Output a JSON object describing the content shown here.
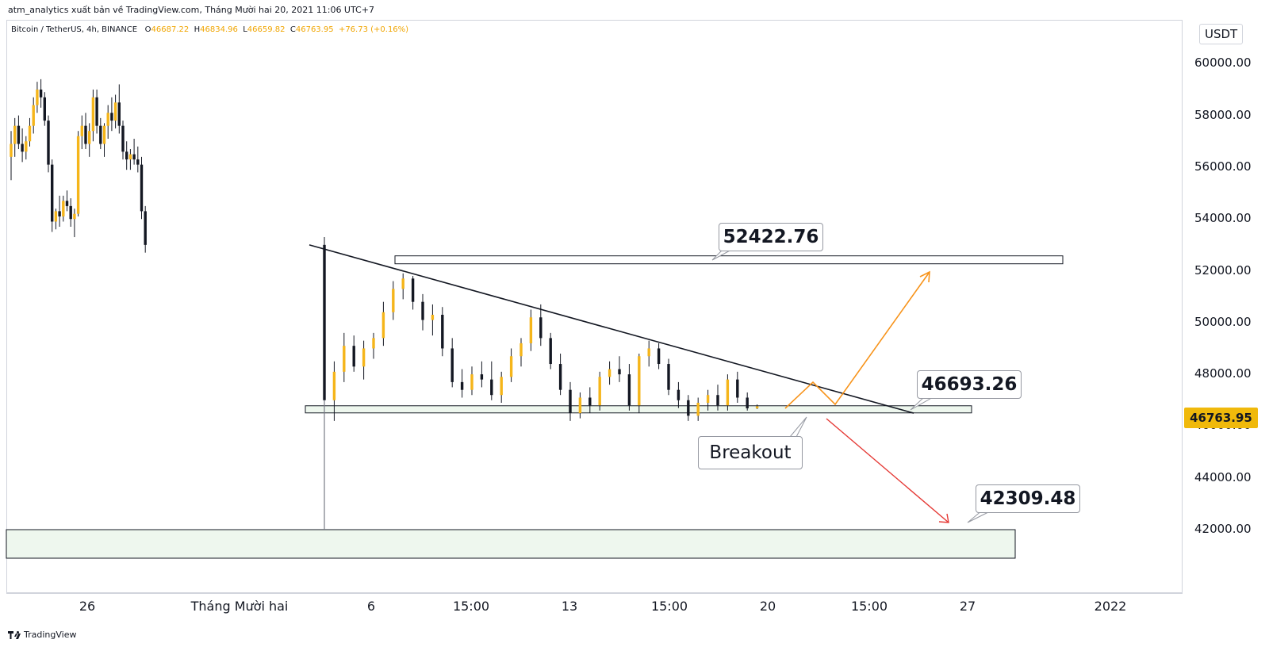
{
  "header": {
    "publish_line": "atm_analytics xuất bản về TradingView.com, Tháng Mười hai 20, 2021 11:06 UTC+7"
  },
  "legend": {
    "symbol": "Bitcoin / TetherUS, 4h, BINANCE",
    "open_key": "O",
    "open": "46687.22",
    "high_key": "H",
    "high": "46834.96",
    "low_key": "L",
    "low": "46659.82",
    "close_key": "C",
    "close": "46763.95",
    "change": "+76.73 (+0.16%)"
  },
  "price_axis": {
    "currency": "USDT",
    "ticks": [
      "60000.00",
      "58000.00",
      "56000.00",
      "54000.00",
      "52000.00",
      "50000.00",
      "48000.00",
      "46000.00",
      "44000.00",
      "42000.00"
    ],
    "last_price": "46763.95",
    "last_price_color": "#f0b90b"
  },
  "time_axis": {
    "ticks": [
      "26",
      "Tháng Mười hai",
      "6",
      "15:00",
      "13",
      "15:00",
      "20",
      "15:00",
      "27",
      "2022"
    ]
  },
  "annotations": {
    "resistance_label": "52422.76",
    "support_label": "46693.26",
    "target_label": "42309.48",
    "breakout_label": "Breakout"
  },
  "colors": {
    "up_candle": "#f5b51a",
    "down_candle": "#131722",
    "bullish_arrow": "#f7931a",
    "bearish_arrow": "#e53935",
    "zone_fill": "#eef7ee"
  },
  "footer": {
    "brand": "TradingView",
    "logo_icon": "tradingview-logo-icon"
  },
  "chart_data": {
    "type": "candlestick",
    "symbol": "Bitcoin / TetherUS",
    "interval": "4h",
    "exchange": "BINANCE",
    "ylim": [
      40500,
      61000
    ],
    "y_ticks": [
      42000,
      44000,
      46000,
      48000,
      50000,
      52000,
      54000,
      56000,
      58000,
      60000
    ],
    "levels": [
      {
        "value": 52422.76,
        "kind": "resistance-zone"
      },
      {
        "value": 46693.26,
        "kind": "support-zone"
      },
      {
        "value": 42309.48,
        "kind": "target-zone"
      }
    ],
    "trendline": {
      "from": 53000,
      "to": 46500
    },
    "candles": [
      [
        56400,
        57400,
        55500,
        56900
      ],
      [
        56900,
        57900,
        56400,
        57600
      ],
      [
        57600,
        58000,
        56700,
        56900
      ],
      [
        56900,
        57500,
        56200,
        56600
      ],
      [
        56600,
        57200,
        56300,
        57000
      ],
      [
        57000,
        57900,
        56800,
        57600
      ],
      [
        57600,
        58700,
        57300,
        58400
      ],
      [
        58400,
        59300,
        58100,
        59000
      ],
      [
        59000,
        59400,
        58300,
        58700
      ],
      [
        58700,
        58900,
        57600,
        57800
      ],
      [
        57800,
        58000,
        55800,
        56100
      ],
      [
        56100,
        56300,
        53500,
        53900
      ],
      [
        53900,
        54400,
        53600,
        54300
      ],
      [
        54300,
        54900,
        53700,
        54100
      ],
      [
        54100,
        54900,
        53900,
        54700
      ],
      [
        54700,
        55100,
        54300,
        54500
      ],
      [
        54500,
        54800,
        53700,
        54000
      ],
      [
        54000,
        54400,
        53300,
        54200
      ],
      [
        54200,
        57400,
        54100,
        57200
      ],
      [
        57200,
        58000,
        56700,
        57600
      ],
      [
        57600,
        58100,
        56700,
        56900
      ],
      [
        56900,
        57700,
        56400,
        57400
      ],
      [
        57400,
        59000,
        57000,
        58700
      ],
      [
        58700,
        59000,
        57300,
        57600
      ],
      [
        57600,
        57900,
        56700,
        56900
      ],
      [
        56900,
        57700,
        56400,
        57600
      ],
      [
        57600,
        58400,
        57100,
        58100
      ],
      [
        58100,
        58700,
        57400,
        57800
      ],
      [
        57800,
        58800,
        57500,
        58500
      ],
      [
        58500,
        59200,
        57300,
        57600
      ],
      [
        57600,
        57800,
        56300,
        56600
      ],
      [
        56600,
        57000,
        55900,
        56300
      ],
      [
        56300,
        56700,
        55900,
        56500
      ],
      [
        56500,
        57100,
        56100,
        56300
      ],
      [
        56300,
        56800,
        55800,
        56100
      ],
      [
        56100,
        56400,
        54000,
        54300
      ],
      [
        54300,
        54500,
        52700,
        53000
      ],
      [
        53000,
        53300,
        46500,
        47000
      ],
      [
        47000,
        48500,
        46200,
        48100
      ],
      [
        48100,
        49600,
        47700,
        49100
      ],
      [
        49100,
        49500,
        48100,
        48300
      ],
      [
        48300,
        49300,
        47800,
        49000
      ],
      [
        49000,
        49600,
        48600,
        49400
      ],
      [
        49400,
        50800,
        49100,
        50400
      ],
      [
        50400,
        51600,
        50100,
        51300
      ],
      [
        51300,
        51900,
        50900,
        51700
      ],
      [
        51700,
        51800,
        50500,
        50800
      ],
      [
        50800,
        51100,
        49700,
        50100
      ],
      [
        50100,
        50700,
        49500,
        50300
      ],
      [
        50300,
        50600,
        48700,
        49000
      ],
      [
        49000,
        49400,
        47500,
        47700
      ],
      [
        47700,
        48200,
        47100,
        47400
      ],
      [
        47400,
        48300,
        47200,
        48000
      ],
      [
        48000,
        48500,
        47500,
        47800
      ],
      [
        47800,
        48500,
        47000,
        47200
      ],
      [
        47200,
        48100,
        46900,
        47900
      ],
      [
        47900,
        49000,
        47700,
        48700
      ],
      [
        48700,
        49400,
        48300,
        49200
      ],
      [
        49200,
        50500,
        48900,
        50200
      ],
      [
        50200,
        50700,
        49100,
        49400
      ],
      [
        49400,
        49600,
        48200,
        48400
      ],
      [
        48400,
        48800,
        47200,
        47400
      ],
      [
        47400,
        47700,
        46200,
        46500
      ],
      [
        46500,
        47300,
        46300,
        47100
      ],
      [
        47100,
        47500,
        46500,
        46800
      ],
      [
        46800,
        48100,
        46600,
        47900
      ],
      [
        47900,
        48500,
        47600,
        48200
      ],
      [
        48200,
        48700,
        47700,
        48000
      ],
      [
        48000,
        48400,
        46600,
        46800
      ],
      [
        46800,
        48800,
        46500,
        48700
      ],
      [
        48700,
        49300,
        48300,
        49000
      ],
      [
        49000,
        49200,
        48200,
        48400
      ],
      [
        48400,
        48600,
        47200,
        47400
      ],
      [
        47400,
        47700,
        46700,
        47000
      ],
      [
        47000,
        47200,
        46200,
        46400
      ],
      [
        46400,
        47100,
        46200,
        46900
      ],
      [
        46900,
        47400,
        46600,
        47200
      ],
      [
        47200,
        47600,
        46600,
        46800
      ],
      [
        46800,
        48000,
        46600,
        47800
      ],
      [
        47800,
        48100,
        46900,
        47100
      ],
      [
        47100,
        47300,
        46600,
        46687
      ],
      [
        46687,
        46835,
        46660,
        46764
      ]
    ]
  }
}
